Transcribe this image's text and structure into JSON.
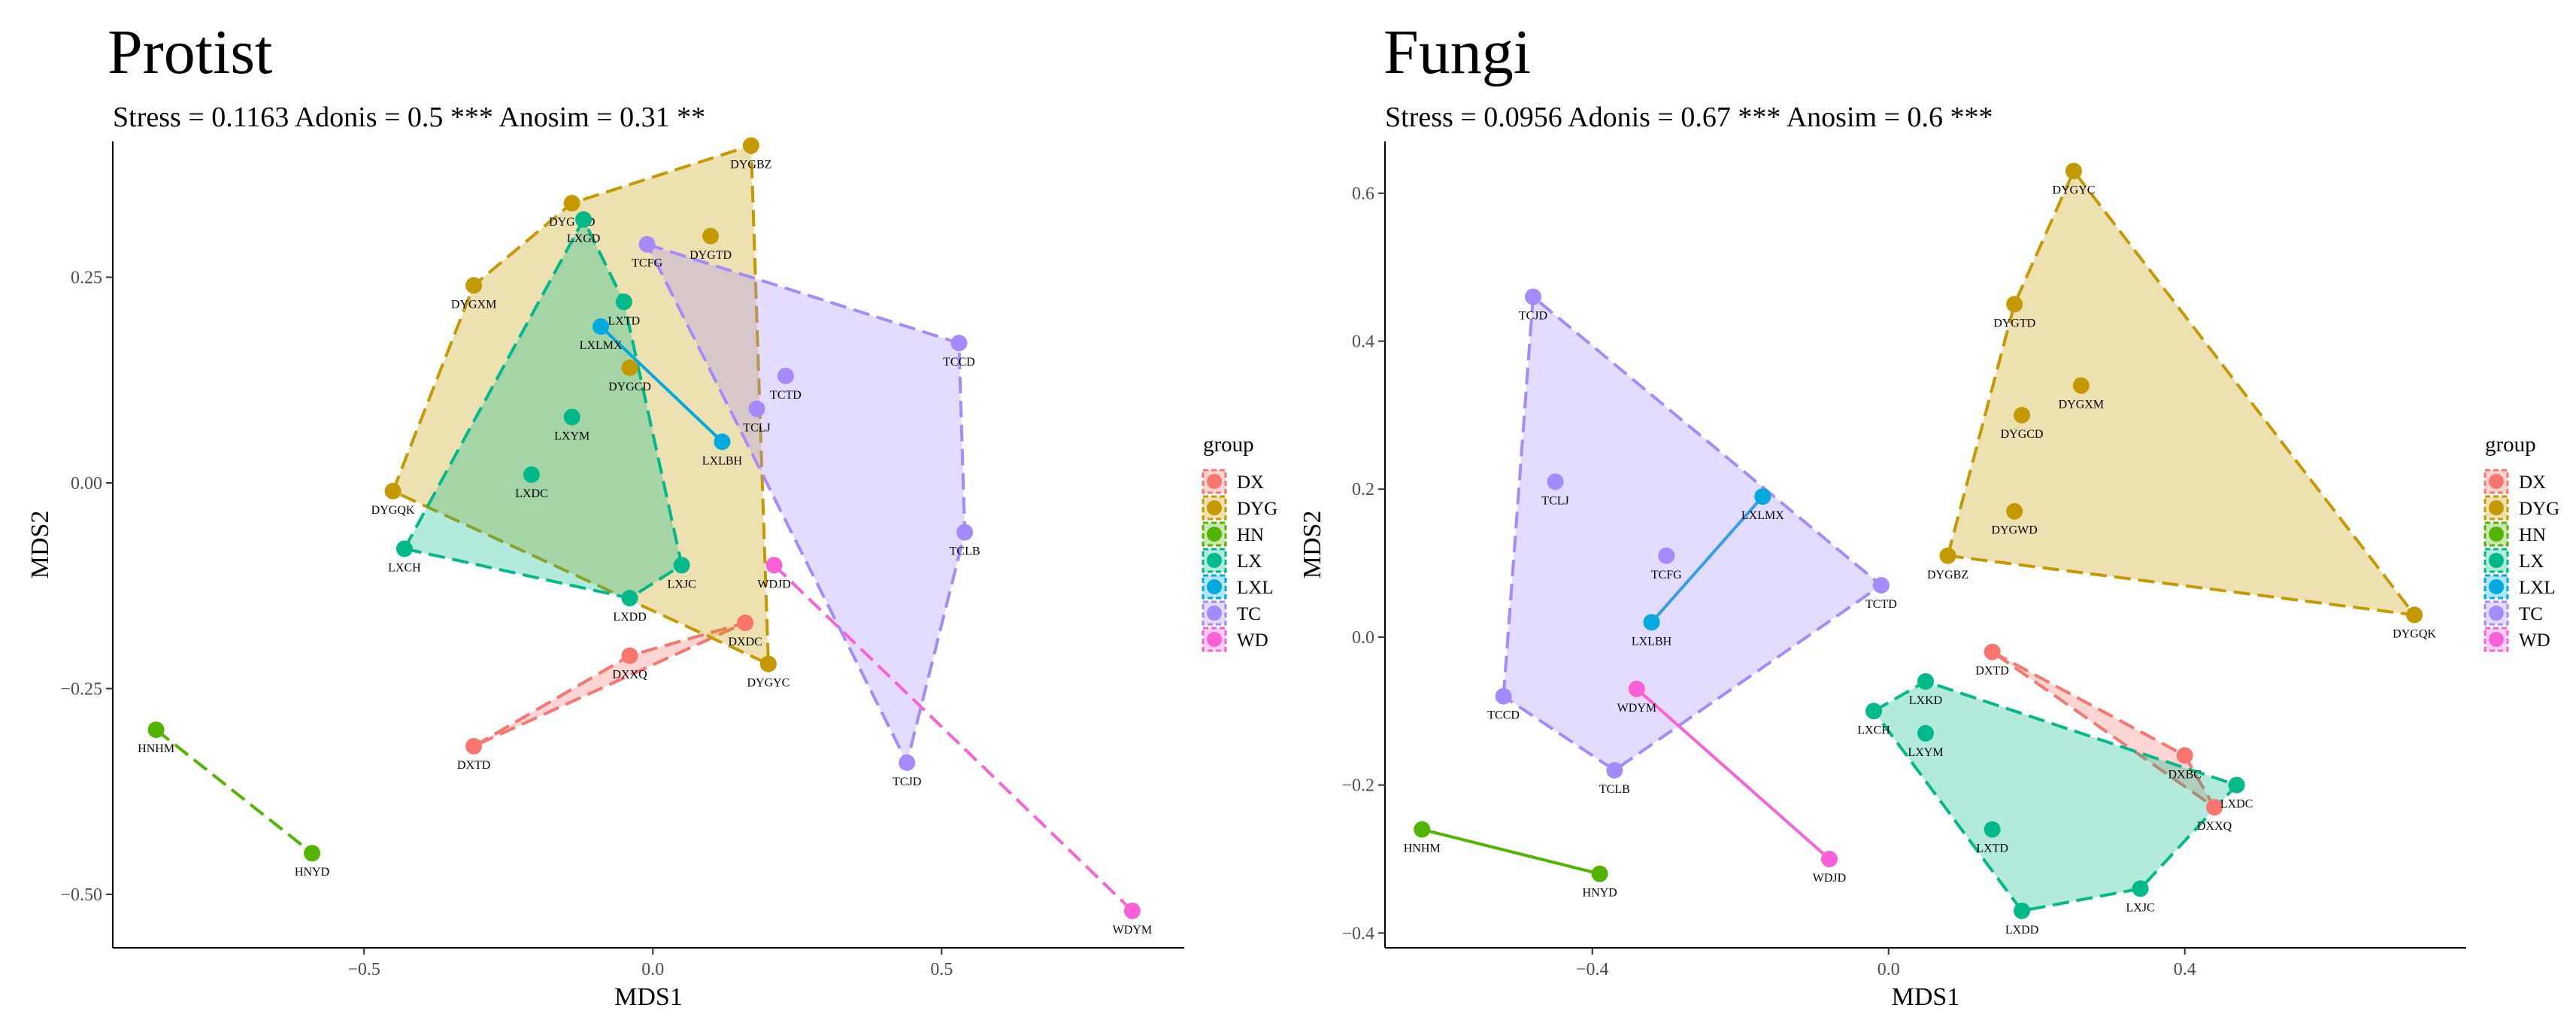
{
  "legend_title": "group",
  "groups": [
    {
      "name": "DX",
      "color": "#F8766D"
    },
    {
      "name": "DYG",
      "color": "#C49A00"
    },
    {
      "name": "HN",
      "color": "#53B400"
    },
    {
      "name": "LX",
      "color": "#00B98B"
    },
    {
      "name": "LXL",
      "color": "#00A9E0"
    },
    {
      "name": "TC",
      "color": "#A58AFF"
    },
    {
      "name": "WD",
      "color": "#FB61D7"
    }
  ],
  "chart_data": [
    {
      "type": "scatter",
      "title": "Protist",
      "subtitle": "Stress = 0.1163 Adonis = 0.5 *** Anosim = 0.31 **",
      "xlabel": "MDS1",
      "ylabel": "MDS2",
      "xlim": [
        -0.935,
        0.92
      ],
      "ylim": [
        -0.565,
        0.415
      ],
      "xticks": [
        -0.5,
        0.0,
        0.5
      ],
      "xtick_labels": [
        "−0.5",
        "0.0",
        "0.5"
      ],
      "yticks": [
        -0.5,
        -0.25,
        0.0,
        0.25
      ],
      "ytick_labels": [
        "−0.50",
        "−0.25",
        "0.00",
        "0.25"
      ],
      "grid": false,
      "legend_position": "right",
      "points": [
        {
          "label": "DXDC",
          "group": "DX",
          "x": 0.16,
          "y": -0.17
        },
        {
          "label": "DXXQ",
          "group": "DX",
          "x": -0.04,
          "y": -0.21
        },
        {
          "label": "DXTD",
          "group": "DX",
          "x": -0.31,
          "y": -0.32
        },
        {
          "label": "DYGBZ",
          "group": "DYG",
          "x": 0.17,
          "y": 0.41
        },
        {
          "label": "DYGWD",
          "group": "DYG",
          "x": -0.14,
          "y": 0.34
        },
        {
          "label": "DYGTD",
          "group": "DYG",
          "x": 0.1,
          "y": 0.3
        },
        {
          "label": "DYGXM",
          "group": "DYG",
          "x": -0.31,
          "y": 0.24
        },
        {
          "label": "DYGCD",
          "group": "DYG",
          "x": -0.04,
          "y": 0.14
        },
        {
          "label": "DYGQK",
          "group": "DYG",
          "x": -0.45,
          "y": -0.01
        },
        {
          "label": "DYGYC",
          "group": "DYG",
          "x": 0.2,
          "y": -0.22
        },
        {
          "label": "HNHM",
          "group": "HN",
          "x": -0.86,
          "y": -0.3
        },
        {
          "label": "HNYD",
          "group": "HN",
          "x": -0.59,
          "y": -0.45
        },
        {
          "label": "LXGD",
          "group": "LX",
          "x": -0.12,
          "y": 0.32
        },
        {
          "label": "LXTD",
          "group": "LX",
          "x": -0.05,
          "y": 0.22
        },
        {
          "label": "LXDC",
          "group": "LX",
          "x": -0.21,
          "y": 0.01
        },
        {
          "label": "LXYM",
          "group": "LX",
          "x": -0.14,
          "y": 0.08
        },
        {
          "label": "LXCH",
          "group": "LX",
          "x": -0.43,
          "y": -0.08
        },
        {
          "label": "LXJC",
          "group": "LX",
          "x": 0.05,
          "y": -0.1
        },
        {
          "label": "LXDD",
          "group": "LX",
          "x": -0.04,
          "y": -0.14
        },
        {
          "label": "LXLMX",
          "group": "LXL",
          "x": -0.09,
          "y": 0.19
        },
        {
          "label": "LXLBH",
          "group": "LXL",
          "x": 0.12,
          "y": 0.05
        },
        {
          "label": "TCFG",
          "group": "TC",
          "x": -0.01,
          "y": 0.29
        },
        {
          "label": "TCCD",
          "group": "TC",
          "x": 0.53,
          "y": 0.17
        },
        {
          "label": "TCTD",
          "group": "TC",
          "x": 0.23,
          "y": 0.13
        },
        {
          "label": "TCLJ",
          "group": "TC",
          "x": 0.18,
          "y": 0.09
        },
        {
          "label": "TCLB",
          "group": "TC",
          "x": 0.54,
          "y": -0.06
        },
        {
          "label": "TCJD",
          "group": "TC",
          "x": 0.44,
          "y": -0.34
        },
        {
          "label": "WDJD",
          "group": "WD",
          "x": 0.21,
          "y": -0.1
        },
        {
          "label": "WDYM",
          "group": "WD",
          "x": 0.83,
          "y": -0.52
        }
      ]
    },
    {
      "type": "scatter",
      "title": "Fungi",
      "subtitle": "Stress = 0.0956 Adonis = 0.67 *** Anosim = 0.6 ***",
      "xlabel": "MDS1",
      "ylabel": "MDS2",
      "xlim": [
        -0.68,
        0.78
      ],
      "ylim": [
        -0.42,
        0.67
      ],
      "xticks": [
        -0.4,
        0.0,
        0.4
      ],
      "xtick_labels": [
        "−0.4",
        "0.0",
        "0.4"
      ],
      "yticks": [
        -0.4,
        -0.2,
        0.0,
        0.2,
        0.4,
        0.6
      ],
      "ytick_labels": [
        "−0.4",
        "−0.2",
        "0.0",
        "0.2",
        "0.4",
        "0.6"
      ],
      "grid": false,
      "legend_position": "right",
      "points": [
        {
          "label": "DXTD",
          "group": "DX",
          "x": 0.14,
          "y": -0.02
        },
        {
          "label": "DXBC",
          "group": "DX",
          "x": 0.4,
          "y": -0.16
        },
        {
          "label": "DXXQ",
          "group": "DX",
          "x": 0.44,
          "y": -0.23
        },
        {
          "label": "DYGYC",
          "group": "DYG",
          "x": 0.25,
          "y": 0.63
        },
        {
          "label": "DYGTD",
          "group": "DYG",
          "x": 0.17,
          "y": 0.45
        },
        {
          "label": "DYGXM",
          "group": "DYG",
          "x": 0.26,
          "y": 0.34
        },
        {
          "label": "DYGCD",
          "group": "DYG",
          "x": 0.18,
          "y": 0.3
        },
        {
          "label": "DYGWD",
          "group": "DYG",
          "x": 0.17,
          "y": 0.17
        },
        {
          "label": "DYGBZ",
          "group": "DYG",
          "x": 0.08,
          "y": 0.11
        },
        {
          "label": "DYGQK",
          "group": "DYG",
          "x": 0.71,
          "y": 0.03
        },
        {
          "label": "HNHM",
          "group": "HN",
          "x": -0.63,
          "y": -0.26
        },
        {
          "label": "HNYD",
          "group": "HN",
          "x": -0.39,
          "y": -0.32
        },
        {
          "label": "LXKD",
          "group": "LX",
          "x": 0.05,
          "y": -0.06
        },
        {
          "label": "LXCH",
          "group": "LX",
          "x": -0.02,
          "y": -0.1
        },
        {
          "label": "LXYM",
          "group": "LX",
          "x": 0.05,
          "y": -0.13
        },
        {
          "label": "LXDC",
          "group": "LX",
          "x": 0.47,
          "y": -0.2
        },
        {
          "label": "LXTD",
          "group": "LX",
          "x": 0.14,
          "y": -0.26
        },
        {
          "label": "LXJC",
          "group": "LX",
          "x": 0.34,
          "y": -0.34
        },
        {
          "label": "LXDD",
          "group": "LX",
          "x": 0.18,
          "y": -0.37
        },
        {
          "label": "LXLMX",
          "group": "LXL",
          "x": -0.17,
          "y": 0.19
        },
        {
          "label": "LXLBH",
          "group": "LXL",
          "x": -0.32,
          "y": 0.02
        },
        {
          "label": "TCJD",
          "group": "TC",
          "x": -0.48,
          "y": 0.46
        },
        {
          "label": "TCLJ",
          "group": "TC",
          "x": -0.45,
          "y": 0.21
        },
        {
          "label": "TCFG",
          "group": "TC",
          "x": -0.3,
          "y": 0.11
        },
        {
          "label": "TCTD",
          "group": "TC",
          "x": -0.01,
          "y": 0.07
        },
        {
          "label": "TCCD",
          "group": "TC",
          "x": -0.52,
          "y": -0.08
        },
        {
          "label": "TCLB",
          "group": "TC",
          "x": -0.37,
          "y": -0.18
        },
        {
          "label": "WDYM",
          "group": "WD",
          "x": -0.34,
          "y": -0.07
        },
        {
          "label": "WDJD",
          "group": "WD",
          "x": -0.08,
          "y": -0.3
        }
      ]
    }
  ]
}
